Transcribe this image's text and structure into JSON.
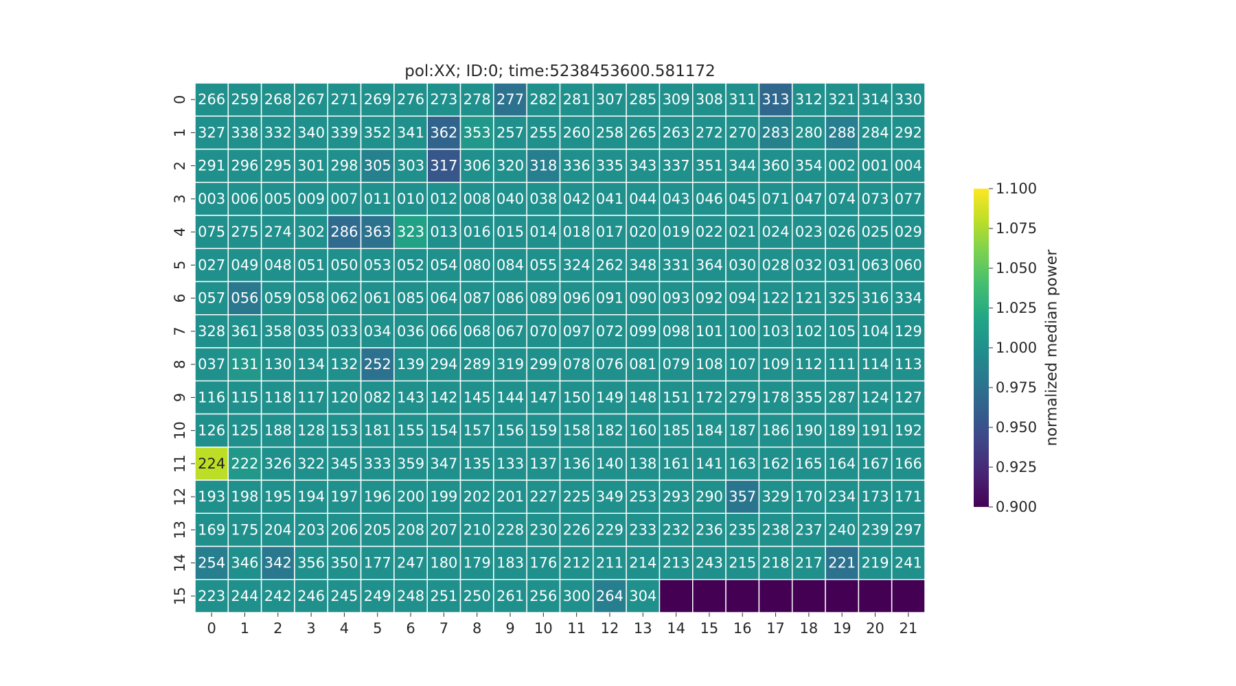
{
  "chart_data": {
    "type": "heatmap",
    "title": "pol:XX; ID:0; time:5238453600.581172",
    "xlabel": "",
    "ylabel": "",
    "x_tick_labels": [
      "0",
      "1",
      "2",
      "3",
      "4",
      "5",
      "6",
      "7",
      "8",
      "9",
      "10",
      "11",
      "12",
      "13",
      "14",
      "15",
      "16",
      "17",
      "18",
      "19",
      "20",
      "21"
    ],
    "y_tick_labels": [
      "0",
      "1",
      "2",
      "3",
      "4",
      "5",
      "6",
      "7",
      "8",
      "9",
      "10",
      "11",
      "12",
      "13",
      "14",
      "15"
    ],
    "colorbar": {
      "label": "normalized median power",
      "range": [
        0.9,
        1.1
      ],
      "tick_labels": [
        "0.900",
        "0.925",
        "0.950",
        "0.975",
        "1.000",
        "1.025",
        "1.050",
        "1.075",
        "1.100"
      ],
      "colormap": "viridis"
    },
    "annotations": [
      [
        "266",
        "259",
        "268",
        "267",
        "271",
        "269",
        "276",
        "273",
        "278",
        "277",
        "282",
        "281",
        "307",
        "285",
        "309",
        "308",
        "311",
        "313",
        "312",
        "321",
        "314",
        "330"
      ],
      [
        "327",
        "338",
        "332",
        "340",
        "339",
        "352",
        "341",
        "362",
        "353",
        "257",
        "255",
        "260",
        "258",
        "265",
        "263",
        "272",
        "270",
        "283",
        "280",
        "288",
        "284",
        "292"
      ],
      [
        "291",
        "296",
        "295",
        "301",
        "298",
        "305",
        "303",
        "317",
        "306",
        "320",
        "318",
        "336",
        "335",
        "343",
        "337",
        "351",
        "344",
        "360",
        "354",
        "002",
        "001",
        "004"
      ],
      [
        "003",
        "006",
        "005",
        "009",
        "007",
        "011",
        "010",
        "012",
        "008",
        "040",
        "038",
        "042",
        "041",
        "044",
        "043",
        "046",
        "045",
        "071",
        "047",
        "074",
        "073",
        "077"
      ],
      [
        "075",
        "275",
        "274",
        "302",
        "286",
        "363",
        "323",
        "013",
        "016",
        "015",
        "014",
        "018",
        "017",
        "020",
        "019",
        "022",
        "021",
        "024",
        "023",
        "026",
        "025",
        "029"
      ],
      [
        "027",
        "049",
        "048",
        "051",
        "050",
        "053",
        "052",
        "054",
        "080",
        "084",
        "055",
        "324",
        "262",
        "348",
        "331",
        "364",
        "030",
        "028",
        "032",
        "031",
        "063",
        "060"
      ],
      [
        "057",
        "056",
        "059",
        "058",
        "062",
        "061",
        "085",
        "064",
        "087",
        "086",
        "089",
        "096",
        "091",
        "090",
        "093",
        "092",
        "094",
        "122",
        "121",
        "325",
        "316",
        "334"
      ],
      [
        "328",
        "361",
        "358",
        "035",
        "033",
        "034",
        "036",
        "066",
        "068",
        "067",
        "070",
        "097",
        "072",
        "099",
        "098",
        "101",
        "100",
        "103",
        "102",
        "105",
        "104",
        "129"
      ],
      [
        "037",
        "131",
        "130",
        "134",
        "132",
        "252",
        "139",
        "294",
        "289",
        "319",
        "299",
        "078",
        "076",
        "081",
        "079",
        "108",
        "107",
        "109",
        "112",
        "111",
        "114",
        "113"
      ],
      [
        "116",
        "115",
        "118",
        "117",
        "120",
        "082",
        "143",
        "142",
        "145",
        "144",
        "147",
        "150",
        "149",
        "148",
        "151",
        "172",
        "279",
        "178",
        "355",
        "287",
        "124",
        "127"
      ],
      [
        "126",
        "125",
        "188",
        "128",
        "153",
        "181",
        "155",
        "154",
        "157",
        "156",
        "159",
        "158",
        "182",
        "160",
        "185",
        "184",
        "187",
        "186",
        "190",
        "189",
        "191",
        "192"
      ],
      [
        "224",
        "222",
        "326",
        "322",
        "345",
        "333",
        "359",
        "347",
        "135",
        "133",
        "137",
        "136",
        "140",
        "138",
        "161",
        "141",
        "163",
        "162",
        "165",
        "164",
        "167",
        "166"
      ],
      [
        "193",
        "198",
        "195",
        "194",
        "197",
        "196",
        "200",
        "199",
        "202",
        "201",
        "227",
        "225",
        "349",
        "253",
        "293",
        "290",
        "357",
        "329",
        "170",
        "234",
        "173",
        "171"
      ],
      [
        "169",
        "175",
        "204",
        "203",
        "206",
        "205",
        "208",
        "207",
        "210",
        "228",
        "230",
        "226",
        "229",
        "233",
        "232",
        "236",
        "235",
        "238",
        "237",
        "240",
        "239",
        "297"
      ],
      [
        "254",
        "346",
        "342",
        "356",
        "350",
        "177",
        "247",
        "180",
        "179",
        "183",
        "176",
        "212",
        "211",
        "214",
        "213",
        "243",
        "215",
        "218",
        "217",
        "221",
        "219",
        "241"
      ],
      [
        "223",
        "244",
        "242",
        "246",
        "245",
        "249",
        "248",
        "251",
        "250",
        "261",
        "256",
        "300",
        "264",
        "304",
        "",
        "",
        "",
        "",
        "",
        "",
        "",
        ""
      ]
    ],
    "values": [
      [
        1.0,
        1.0,
        1.0,
        1.0,
        1.0,
        1.0,
        1.0,
        1.0,
        1.0,
        0.975,
        1.0,
        1.0,
        1.0,
        1.0,
        1.0,
        1.0,
        1.0,
        0.968,
        1.0,
        1.0,
        1.0,
        1.0
      ],
      [
        1.0,
        1.0,
        1.0,
        1.0,
        1.0,
        1.0,
        1.0,
        0.965,
        1.007,
        1.0,
        1.0,
        1.0,
        1.0,
        1.0,
        1.0,
        1.0,
        1.0,
        0.988,
        1.0,
        0.985,
        1.0,
        1.0
      ],
      [
        1.0,
        1.0,
        1.0,
        1.0,
        1.0,
        0.988,
        1.0,
        0.955,
        1.0,
        1.0,
        0.985,
        1.0,
        1.0,
        1.0,
        1.0,
        1.0,
        1.0,
        1.0,
        1.0,
        1.0,
        1.0,
        1.0
      ],
      [
        1.0,
        1.0,
        1.0,
        1.0,
        1.0,
        1.0,
        1.0,
        1.0,
        1.0,
        1.0,
        1.0,
        1.0,
        1.0,
        1.0,
        1.0,
        1.0,
        1.0,
        1.0,
        1.0,
        1.0,
        1.0,
        1.0
      ],
      [
        1.0,
        1.0,
        1.0,
        1.0,
        0.97,
        0.975,
        1.015,
        1.0,
        1.0,
        1.0,
        1.0,
        1.0,
        1.0,
        1.0,
        1.0,
        1.0,
        1.0,
        1.0,
        1.0,
        1.0,
        1.0,
        1.0
      ],
      [
        1.0,
        1.0,
        1.0,
        1.0,
        1.0,
        1.0,
        1.0,
        1.0,
        1.0,
        1.0,
        1.0,
        1.0,
        1.0,
        1.0,
        1.0,
        1.0,
        1.0,
        1.0,
        1.0,
        1.0,
        1.0,
        1.0
      ],
      [
        1.0,
        0.98,
        1.0,
        1.0,
        1.0,
        1.0,
        1.0,
        1.0,
        1.0,
        1.0,
        1.0,
        1.0,
        1.0,
        1.0,
        1.0,
        1.0,
        1.0,
        1.0,
        1.0,
        1.0,
        1.0,
        1.0
      ],
      [
        1.0,
        1.0,
        1.0,
        1.0,
        1.0,
        1.0,
        1.0,
        1.0,
        1.0,
        1.0,
        1.0,
        1.0,
        1.0,
        1.0,
        1.0,
        1.0,
        1.0,
        1.0,
        1.0,
        1.0,
        1.0,
        1.0
      ],
      [
        1.0,
        1.007,
        1.0,
        1.0,
        1.0,
        0.975,
        1.0,
        1.0,
        1.0,
        1.0,
        1.0,
        1.0,
        1.0,
        1.0,
        1.0,
        1.0,
        1.0,
        1.0,
        1.0,
        1.0,
        1.0,
        1.0
      ],
      [
        1.0,
        1.0,
        1.0,
        1.0,
        1.0,
        1.0,
        1.0,
        1.0,
        1.0,
        1.0,
        1.0,
        1.0,
        1.0,
        1.0,
        1.0,
        1.0,
        1.0,
        1.0,
        1.0,
        1.0,
        1.0,
        1.0
      ],
      [
        1.0,
        1.0,
        1.0,
        1.0,
        1.0,
        1.0,
        1.0,
        1.0,
        1.0,
        1.0,
        1.0,
        1.0,
        1.0,
        1.0,
        1.0,
        1.0,
        1.0,
        1.0,
        1.0,
        1.0,
        1.0,
        1.0
      ],
      [
        1.08,
        1.007,
        1.0,
        1.0,
        1.0,
        1.0,
        1.0,
        1.0,
        1.0,
        1.0,
        1.0,
        1.0,
        1.0,
        1.0,
        1.0,
        1.0,
        1.0,
        1.0,
        1.0,
        1.0,
        1.0,
        1.0
      ],
      [
        1.0,
        1.0,
        1.0,
        1.0,
        1.0,
        1.0,
        1.0,
        1.0,
        1.0,
        1.0,
        1.0,
        1.0,
        1.0,
        1.0,
        1.0,
        1.0,
        0.978,
        1.0,
        1.0,
        1.0,
        1.0,
        1.0
      ],
      [
        1.0,
        1.0,
        1.0,
        1.0,
        1.0,
        1.0,
        1.0,
        1.0,
        1.0,
        1.0,
        1.0,
        1.0,
        1.0,
        1.0,
        1.0,
        1.0,
        1.0,
        1.0,
        1.0,
        1.0,
        1.0,
        1.0
      ],
      [
        0.985,
        1.0,
        0.98,
        1.0,
        1.0,
        1.0,
        1.0,
        1.0,
        1.0,
        1.0,
        1.0,
        1.0,
        1.0,
        1.0,
        1.0,
        1.0,
        1.0,
        1.0,
        1.0,
        0.975,
        1.0,
        1.0
      ],
      [
        1.0,
        1.0,
        1.0,
        1.0,
        1.0,
        1.0,
        1.0,
        1.0,
        1.0,
        1.0,
        1.0,
        1.0,
        0.985,
        1.0,
        0.9,
        0.9,
        0.9,
        0.9,
        0.9,
        0.9,
        0.9,
        0.9
      ]
    ]
  }
}
